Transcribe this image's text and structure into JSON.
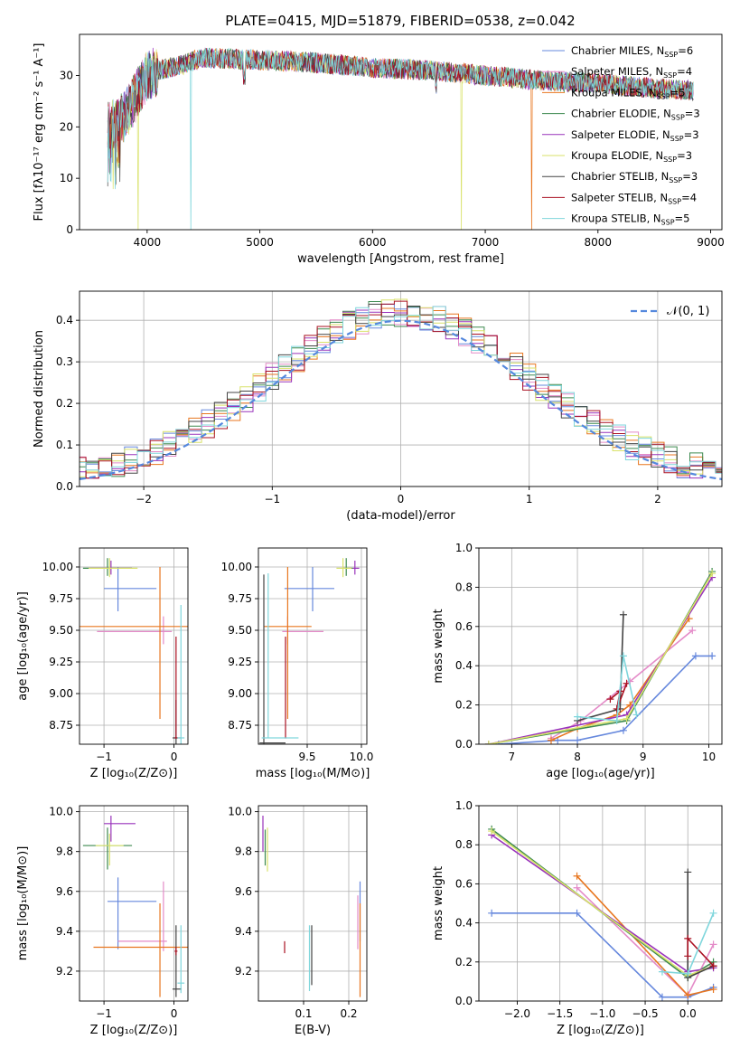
{
  "figure_title": "PLATE=0415, MJD=51879, FIBERID=0538, z=0.042",
  "models": [
    {
      "name": "Chabrier MILES",
      "nssp": "6",
      "color": "#6688dd"
    },
    {
      "name": "Salpeter MILES",
      "nssp": "4",
      "color": "#e48bc8"
    },
    {
      "name": "Kroupa MILES",
      "nssp": "5",
      "color": "#e8761f"
    },
    {
      "name": "Chabrier ELODIE",
      "nssp": "3",
      "color": "#3d8a4f"
    },
    {
      "name": "Salpeter ELODIE",
      "nssp": "3",
      "color": "#9933bb"
    },
    {
      "name": "Kroupa ELODIE",
      "nssp": "3",
      "color": "#d9e26a"
    },
    {
      "name": "Chabrier STELIB",
      "nssp": "3",
      "color": "#444444"
    },
    {
      "name": "Salpeter STELIB",
      "nssp": "4",
      "color": "#aa1122"
    },
    {
      "name": "Kroupa STELIB",
      "nssp": "5",
      "color": "#7fd6dc"
    }
  ],
  "chart_data": [
    {
      "id": "spectrum",
      "type": "line",
      "title": "PLATE=0415, MJD=51879, FIBERID=0538, z=0.042",
      "xlabel": "wavelength [Angstrom, rest frame]",
      "ylabel": "Flux [fλ10⁻¹⁷ erg cm⁻² s⁻¹ A⁻¹]",
      "xlim": [
        3400,
        9100
      ],
      "ylim": [
        0,
        38
      ],
      "xticks": [
        4000,
        5000,
        6000,
        7000,
        8000,
        9000
      ],
      "yticks": [
        0,
        10,
        20,
        30
      ],
      "legend": "top-right",
      "spectrum_range": [
        3650,
        8850
      ],
      "continuum_knots": {
        "x": [
          3650,
          3800,
          4000,
          4100,
          4300,
          4500,
          5000,
          5500,
          6000,
          6500,
          7000,
          7500,
          8000,
          8500,
          8850
        ],
        "y": [
          20,
          22,
          30,
          31,
          32,
          33.5,
          33,
          32.5,
          31.5,
          31,
          30,
          29,
          28.5,
          27.5,
          27
        ]
      },
      "drops": [
        {
          "x": 3920,
          "model": "Kroupa ELODIE"
        },
        {
          "x": 4390,
          "model": "Kroupa STELIB"
        },
        {
          "x": 6790,
          "model": "Kroupa ELODIE"
        },
        {
          "x": 7410,
          "model": "Kroupa MILES"
        }
      ]
    },
    {
      "id": "residuals",
      "type": "step",
      "xlabel": "(data-model)/error",
      "ylabel": "Normed distribution",
      "xlim": [
        -2.5,
        2.5
      ],
      "ylim": [
        0,
        0.47
      ],
      "xticks": [
        -2,
        -1,
        0,
        1,
        2
      ],
      "yticks": [
        0.0,
        0.1,
        0.2,
        0.3,
        0.4
      ],
      "grid": true,
      "legend": "top-right",
      "reference": {
        "label": "𝒩(0, 1)",
        "mean": 0,
        "sigma": 1
      },
      "bin_width": 0.1
    },
    {
      "id": "age-vs-Z",
      "type": "errorbar",
      "xlabel": "Z [log₁₀(Z/Z⊙)]",
      "ylabel": "age  [log₁₀(age/yr)]",
      "xlim": [
        -1.35,
        0.2
      ],
      "ylim": [
        8.6,
        10.15
      ],
      "xticks": [
        -1,
        0
      ],
      "yticks": [
        8.75,
        9.0,
        9.25,
        9.5,
        9.75,
        10.0
      ],
      "grid": true,
      "points": [
        {
          "model": "Chabrier MILES",
          "x": -0.8,
          "xerr": [
            0.2,
            0.55
          ],
          "y": 9.83,
          "yerr": [
            0.18,
            0.17
          ]
        },
        {
          "model": "Salpeter MILES",
          "x": -0.15,
          "xerr": [
            0.95,
            0.12
          ],
          "y": 9.49,
          "yerr": [
            0.1,
            0.12
          ]
        },
        {
          "model": "Kroupa MILES",
          "x": -0.2,
          "xerr": [
            1.15,
            0.4
          ],
          "y": 9.53,
          "yerr": [
            0.73,
            0.47
          ]
        },
        {
          "model": "Chabrier ELODIE",
          "x": -0.95,
          "xerr": [
            0.35,
            0.35
          ],
          "y": 9.99,
          "yerr": [
            0.06,
            0.08
          ]
        },
        {
          "model": "Salpeter ELODIE",
          "x": -0.9,
          "xerr": [
            0.3,
            0.3
          ],
          "y": 9.99,
          "yerr": [
            0.05,
            0.06
          ]
        },
        {
          "model": "Kroupa ELODIE",
          "x": -0.92,
          "xerr": [
            0.3,
            0.4
          ],
          "y": 9.99,
          "yerr": [
            0.07,
            0.08
          ]
        },
        {
          "model": "Chabrier STELIB",
          "x": 0.03,
          "xerr": [
            0.05,
            0.08
          ],
          "y": 8.65,
          "yerr": [
            0.05,
            0.3
          ]
        },
        {
          "model": "Salpeter STELIB",
          "x": 0.03,
          "xerr": [
            0.02,
            0.02
          ],
          "y": 8.65,
          "yerr": [
            0.0,
            0.8
          ]
        },
        {
          "model": "Kroupa STELIB",
          "x": 0.1,
          "xerr": [
            0.05,
            0.05
          ],
          "y": 8.65,
          "yerr": [
            0.05,
            1.05
          ]
        }
      ]
    },
    {
      "id": "age-vs-mass",
      "type": "errorbar",
      "xlabel": "mass [log₁₀(M/M⊙)]",
      "ylabel": "",
      "xlim": [
        9.05,
        10.05
      ],
      "ylim": [
        8.6,
        10.15
      ],
      "xticks": [
        9.5,
        10.0
      ],
      "yticks": [
        8.75,
        9.0,
        9.25,
        9.5,
        9.75,
        10.0
      ],
      "grid": true,
      "points": [
        {
          "model": "Chabrier MILES",
          "x": 9.55,
          "xerr": [
            0.26,
            0.2
          ],
          "y": 9.83,
          "yerr": [
            0.18,
            0.17
          ]
        },
        {
          "model": "Salpeter MILES",
          "x": 9.32,
          "xerr": [
            0.05,
            0.33
          ],
          "y": 9.49,
          "yerr": [
            0.1,
            0.12
          ]
        },
        {
          "model": "Kroupa MILES",
          "x": 9.32,
          "xerr": [
            0.22,
            0.22
          ],
          "y": 9.53,
          "yerr": [
            0.73,
            0.47
          ]
        },
        {
          "model": "Chabrier ELODIE",
          "x": 9.86,
          "xerr": [
            0.03,
            0.06
          ],
          "y": 9.99,
          "yerr": [
            0.06,
            0.08
          ]
        },
        {
          "model": "Salpeter ELODIE",
          "x": 9.94,
          "xerr": [
            0.02,
            0.04
          ],
          "y": 9.99,
          "yerr": [
            0.05,
            0.06
          ]
        },
        {
          "model": "Kroupa ELODIE",
          "x": 9.83,
          "xerr": [
            0.06,
            0.08
          ],
          "y": 9.99,
          "yerr": [
            0.07,
            0.08
          ]
        },
        {
          "model": "Chabrier STELIB",
          "x": 9.1,
          "xerr": [
            0.04,
            0.2
          ],
          "y": 8.61,
          "yerr": [
            0.02,
            1.33
          ]
        },
        {
          "model": "Salpeter STELIB",
          "x": 9.3,
          "xerr": [
            0.01,
            0.01
          ],
          "y": 8.65,
          "yerr": [
            0.0,
            0.8
          ]
        },
        {
          "model": "Kroupa STELIB",
          "x": 9.14,
          "xerr": [
            0.06,
            0.28
          ],
          "y": 8.65,
          "yerr": [
            0.0,
            1.3
          ]
        }
      ]
    },
    {
      "id": "mass-vs-Z",
      "type": "errorbar",
      "xlabel": "Z [log₁₀(Z/Z⊙)]",
      "ylabel": "mass [log₁₀(M/M⊙)]",
      "xlim": [
        -1.35,
        0.2
      ],
      "ylim": [
        9.05,
        10.03
      ],
      "xticks": [
        -1,
        0
      ],
      "yticks": [
        9.2,
        9.4,
        9.6,
        9.8,
        10.0
      ],
      "grid": true,
      "points": [
        {
          "model": "Chabrier MILES",
          "x": -0.8,
          "xerr": [
            0.15,
            0.55
          ],
          "y": 9.55,
          "yerr": [
            0.24,
            0.12
          ]
        },
        {
          "model": "Salpeter MILES",
          "x": -0.15,
          "xerr": [
            0.65,
            0.05
          ],
          "y": 9.35,
          "yerr": [
            0.05,
            0.3
          ]
        },
        {
          "model": "Kroupa MILES",
          "x": -0.2,
          "xerr": [
            0.95,
            0.4
          ],
          "y": 9.32,
          "yerr": [
            0.25,
            0.22
          ]
        },
        {
          "model": "Chabrier ELODIE",
          "x": -0.95,
          "xerr": [
            0.35,
            0.35
          ],
          "y": 9.83,
          "yerr": [
            0.12,
            0.09
          ]
        },
        {
          "model": "Salpeter ELODIE",
          "x": -0.9,
          "xerr": [
            0.1,
            0.35
          ],
          "y": 9.94,
          "yerr": [
            0.09,
            0.04
          ]
        },
        {
          "model": "Kroupa ELODIE",
          "x": -0.92,
          "xerr": [
            0.2,
            0.2
          ],
          "y": 9.83,
          "yerr": [
            0.1,
            0.06
          ]
        },
        {
          "model": "Chabrier STELIB",
          "x": 0.03,
          "xerr": [
            0.05,
            0.08
          ],
          "y": 9.11,
          "yerr": [
            0.04,
            0.32
          ]
        },
        {
          "model": "Salpeter STELIB",
          "x": 0.03,
          "xerr": [
            0.02,
            0.02
          ],
          "y": 9.3,
          "yerr": [
            0.02,
            0.02
          ]
        },
        {
          "model": "Kroupa STELIB",
          "x": 0.1,
          "xerr": [
            0.05,
            0.05
          ],
          "y": 9.14,
          "yerr": [
            0.05,
            0.29
          ]
        }
      ]
    },
    {
      "id": "mass-vs-ebv",
      "type": "errorbar",
      "xlabel": "E(B-V)",
      "ylabel": "",
      "xlim": [
        0.0,
        0.24
      ],
      "ylim": [
        9.05,
        10.03
      ],
      "xticks": [
        0.1,
        0.2
      ],
      "yticks": [
        9.2,
        9.4,
        9.6,
        9.8,
        10.0
      ],
      "grid": true,
      "points": [
        {
          "model": "Chabrier MILES",
          "x": 0.225,
          "xerr": [
            0.0,
            0.0
          ],
          "y": 9.45,
          "yerr": [
            0.1,
            0.2
          ]
        },
        {
          "model": "Salpeter MILES",
          "x": 0.22,
          "xerr": [
            0.0,
            0.0
          ],
          "y": 9.46,
          "yerr": [
            0.15,
            0.12
          ]
        },
        {
          "model": "Kroupa MILES",
          "x": 0.225,
          "xerr": [
            0.0,
            0.0
          ],
          "y": 9.32,
          "yerr": [
            0.25,
            0.22
          ]
        },
        {
          "model": "Chabrier ELODIE",
          "x": 0.015,
          "xerr": [
            0.0,
            0.0
          ],
          "y": 9.83,
          "yerr": [
            0.1,
            0.08
          ]
        },
        {
          "model": "Salpeter ELODIE",
          "x": 0.01,
          "xerr": [
            0.0,
            0.0
          ],
          "y": 9.9,
          "yerr": [
            0.1,
            0.08
          ]
        },
        {
          "model": "Kroupa ELODIE",
          "x": 0.02,
          "xerr": [
            0.0,
            0.0
          ],
          "y": 9.82,
          "yerr": [
            0.12,
            0.1
          ]
        },
        {
          "model": "Chabrier STELIB",
          "x": 0.118,
          "xerr": [
            0.0,
            0.0
          ],
          "y": 9.28,
          "yerr": [
            0.15,
            0.15
          ]
        },
        {
          "model": "Salpeter STELIB",
          "x": 0.058,
          "xerr": [
            0.0,
            0.0
          ],
          "y": 9.32,
          "yerr": [
            0.03,
            0.03
          ]
        },
        {
          "model": "Kroupa STELIB",
          "x": 0.113,
          "xerr": [
            0.0,
            0.0
          ],
          "y": 9.27,
          "yerr": [
            0.17,
            0.16
          ]
        }
      ]
    },
    {
      "id": "weight-vs-age",
      "type": "line",
      "xlabel": "age  [log₁₀(age/yr)]",
      "ylabel": "mass weight",
      "xlim": [
        6.5,
        10.2
      ],
      "ylim": [
        0,
        1.0
      ],
      "xticks": [
        7,
        8,
        9,
        10
      ],
      "yticks": [
        0.0,
        0.2,
        0.4,
        0.6,
        0.8,
        1.0
      ],
      "grid": true,
      "series": [
        {
          "model": "Chabrier MILES",
          "x": [
            6.8,
            7.7,
            8.0,
            8.7,
            9.8,
            10.05
          ],
          "y": [
            0.0,
            0.02,
            0.02,
            0.07,
            0.45,
            0.45
          ]
        },
        {
          "model": "Salpeter MILES",
          "x": [
            7.6,
            8.05,
            8.8,
            9.75
          ],
          "y": [
            0.03,
            0.12,
            0.32,
            0.58
          ]
        },
        {
          "model": "Kroupa MILES",
          "x": [
            7.6,
            8.0,
            8.6,
            8.8,
            9.7
          ],
          "y": [
            0.02,
            0.08,
            0.15,
            0.2,
            0.64
          ]
        },
        {
          "model": "Chabrier ELODIE",
          "x": [
            6.65,
            8.75,
            10.05
          ],
          "y": [
            0.0,
            0.12,
            0.88
          ]
        },
        {
          "model": "Salpeter ELODIE",
          "x": [
            6.65,
            8.75,
            10.05
          ],
          "y": [
            0.0,
            0.15,
            0.85
          ]
        },
        {
          "model": "Kroupa ELODIE",
          "x": [
            6.65,
            8.75,
            10.05
          ],
          "y": [
            0.0,
            0.13,
            0.87
          ]
        },
        {
          "model": "Chabrier STELIB",
          "x": [
            8.0,
            8.65,
            8.7
          ],
          "y": [
            0.12,
            0.18,
            0.66
          ]
        },
        {
          "model": "Salpeter STELIB",
          "x": [
            8.5,
            8.65,
            8.6,
            8.75
          ],
          "y": [
            0.23,
            0.27,
            0.18,
            0.31
          ]
        },
        {
          "model": "Kroupa STELIB",
          "x": [
            8.0,
            8.6,
            8.7,
            8.9
          ],
          "y": [
            0.14,
            0.12,
            0.45,
            0.15
          ]
        }
      ]
    },
    {
      "id": "weight-vs-Z",
      "type": "line",
      "xlabel": "Z [log₁₀(Z/Z⊙)]",
      "ylabel": "mass weight",
      "xlim": [
        -2.45,
        0.4
      ],
      "ylim": [
        0,
        1.0
      ],
      "xticks": [
        -2.0,
        -1.5,
        -1.0,
        -0.5,
        0.0
      ],
      "yticks": [
        0.0,
        0.2,
        0.4,
        0.6,
        0.8,
        1.0
      ],
      "grid": true,
      "series": [
        {
          "model": "Chabrier MILES",
          "x": [
            -2.3,
            -1.3,
            -0.3,
            0.0,
            0.3
          ],
          "y": [
            0.45,
            0.45,
            0.02,
            0.02,
            0.07
          ]
        },
        {
          "model": "Salpeter MILES",
          "x": [
            -1.3,
            0.0,
            0.3
          ],
          "y": [
            0.58,
            0.03,
            0.29
          ]
        },
        {
          "model": "Kroupa MILES",
          "x": [
            -1.3,
            0.0,
            0.3
          ],
          "y": [
            0.64,
            0.03,
            0.06
          ]
        },
        {
          "model": "Chabrier ELODIE",
          "x": [
            -2.3,
            0.0,
            0.3
          ],
          "y": [
            0.88,
            0.12,
            0.2
          ]
        },
        {
          "model": "Salpeter ELODIE",
          "x": [
            -2.3,
            0.0,
            0.3
          ],
          "y": [
            0.85,
            0.15,
            0.17
          ]
        },
        {
          "model": "Kroupa ELODIE",
          "x": [
            -2.3,
            0.0,
            0.3
          ],
          "y": [
            0.87,
            0.13,
            0.18
          ]
        },
        {
          "model": "Chabrier STELIB",
          "x": [
            0.0,
            0.0,
            0.3
          ],
          "y": [
            0.66,
            0.12,
            0.18
          ]
        },
        {
          "model": "Salpeter STELIB",
          "x": [
            0.0,
            0.0,
            0.3
          ],
          "y": [
            0.23,
            0.32,
            0.18
          ]
        },
        {
          "model": "Kroupa STELIB",
          "x": [
            -0.3,
            0.0,
            0.3
          ],
          "y": [
            0.15,
            0.14,
            0.45
          ]
        }
      ]
    }
  ]
}
